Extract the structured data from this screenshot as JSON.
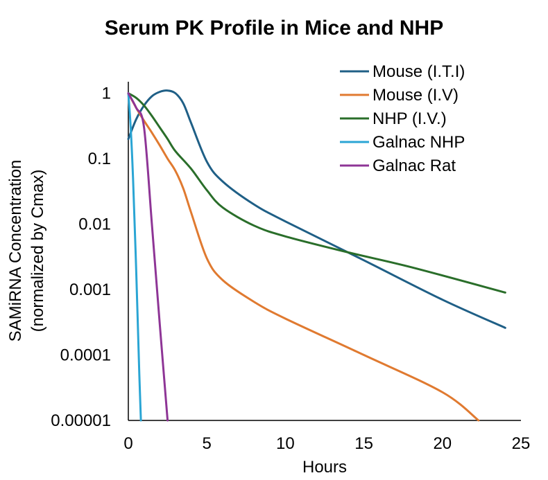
{
  "chart_data": {
    "type": "line",
    "title": "Serum PK Profile in Mice and NHP",
    "xlabel": "Hours",
    "ylabel_line1": "SAMiRNA Concentration",
    "ylabel_line2": "(normalized by Cmax)",
    "xlim": [
      0,
      25
    ],
    "ylim": [
      1e-05,
      1.5
    ],
    "yscale": "log",
    "grid": false,
    "legend_position": "top-right",
    "x_ticks": [
      0,
      5,
      10,
      15,
      20,
      25
    ],
    "x_tick_labels": [
      "0",
      "5",
      "10",
      "15",
      "20",
      "25"
    ],
    "y_ticks": [
      1e-05,
      0.0001,
      0.001,
      0.01,
      0.1,
      1
    ],
    "y_tick_labels": [
      "0.00001",
      "0.0001",
      "0.001",
      "0.01",
      "0.1",
      "1"
    ],
    "series": [
      {
        "name": "Mouse (I.T.I)",
        "color": "#1f5f86",
        "x": [
          0,
          0.5,
          1,
          1.5,
          2,
          2.5,
          3,
          3.5,
          4,
          5,
          6,
          8,
          10,
          15,
          20,
          24
        ],
        "y": [
          0.2,
          0.4,
          0.65,
          0.9,
          1.05,
          1.1,
          1.0,
          0.7,
          0.35,
          0.09,
          0.045,
          0.02,
          0.011,
          0.0028,
          0.0007,
          0.00026
        ]
      },
      {
        "name": "Mouse (I.V)",
        "color": "#e07a30",
        "x": [
          0,
          0.5,
          1,
          1.5,
          2,
          2.5,
          3,
          3.5,
          4,
          5,
          6,
          8,
          10,
          15,
          20,
          22.3
        ],
        "y": [
          1,
          0.6,
          0.38,
          0.25,
          0.16,
          0.1,
          0.065,
          0.035,
          0.015,
          0.003,
          0.0014,
          0.00065,
          0.00036,
          0.0001,
          2.7e-05,
          1e-05
        ]
      },
      {
        "name": "NHP (I.V.)",
        "color": "#2a6e2a",
        "x": [
          0,
          0.5,
          1,
          1.5,
          2,
          2.5,
          3,
          4,
          5,
          6,
          8,
          10,
          14,
          18,
          24
        ],
        "y": [
          1,
          0.85,
          0.65,
          0.45,
          0.3,
          0.2,
          0.13,
          0.07,
          0.033,
          0.018,
          0.0095,
          0.0065,
          0.0037,
          0.0022,
          0.0009
        ]
      },
      {
        "name": "Galnac NHP",
        "color": "#2aa5d4",
        "x": [
          0,
          0.15,
          0.3,
          0.5,
          0.7,
          0.8
        ],
        "y": [
          1,
          0.3,
          0.05,
          0.002,
          5e-05,
          1e-05
        ]
      },
      {
        "name": "Galnac Rat",
        "color": "#8e3596",
        "x": [
          0,
          0.5,
          1,
          1.5,
          2,
          2.5
        ],
        "y": [
          1,
          0.6,
          0.3,
          0.01,
          0.0003,
          1e-05
        ]
      }
    ]
  }
}
